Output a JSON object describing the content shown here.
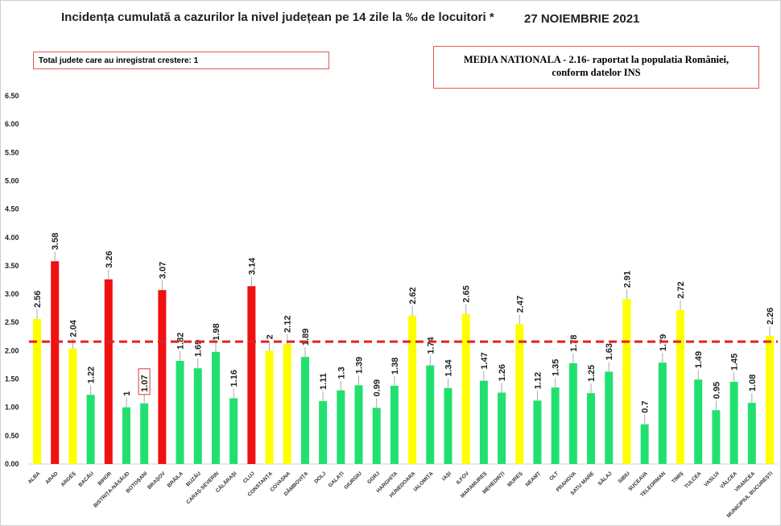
{
  "title": "Incidența cumulată a cazurilor la nivel județean pe 14 zile la ‰ de locuitori *",
  "date": "27 NOIEMBRIE 2021",
  "info_box": "Total judete care au inregistrat crestere: 1",
  "national_box_line1": "MEDIA NATIONALA - 2.16-  raportat la populatia României,",
  "national_box_line2": "conform datelor INS",
  "chart_data": {
    "type": "bar",
    "title": "Incidența cumulată a cazurilor la nivel județean pe 14 zile la ‰ de locuitori *",
    "ylim": [
      0,
      6.5
    ],
    "yticks": [
      "0.00",
      "0.50",
      "1.00",
      "1.50",
      "2.00",
      "2.50",
      "3.00",
      "3.50",
      "4.00",
      "4.50",
      "5.00",
      "5.50",
      "6.00",
      "6.50"
    ],
    "reference_line": {
      "value": 2.16,
      "color": "#e52020",
      "style": "dashed"
    },
    "colors": {
      "red": "#f01010",
      "yellow": "#ffff00",
      "green": "#22e070"
    },
    "highlighted_label": "BOTOȘANI",
    "categories": [
      "ALBA",
      "ARAD",
      "ARGEȘ",
      "BACĂU",
      "BIHOR",
      "BISTRIȚA-NĂSĂUD",
      "BOTOȘANI",
      "BRAȘOV",
      "BRĂILA",
      "BUZĂU",
      "CARAȘ-SEVERIN",
      "CĂLĂRAȘI",
      "CLUJ",
      "CONSTANȚA",
      "COVASNA",
      "DÂMBOVIȚA",
      "DOLJ",
      "GALAȚI",
      "GIURGIU",
      "GORJ",
      "HARGHITA",
      "HUNEDOARA",
      "IALOMIȚA",
      "IAȘI",
      "ILFOV",
      "MARAMUREȘ",
      "MEHEDINȚI",
      "MUREȘ",
      "NEAMȚ",
      "OLT",
      "PRAHOVA",
      "SATU MARE",
      "SĂLAJ",
      "SIBIU",
      "SUCEAVA",
      "TELEORMAN",
      "TIMIȘ",
      "TULCEA",
      "VASLUI",
      "VÂLCEA",
      "VRANCEA",
      "MUNICIPIUL BUCUREȘTI"
    ],
    "values": [
      2.56,
      3.58,
      2.04,
      1.22,
      3.26,
      1,
      1.07,
      3.07,
      1.82,
      1.69,
      1.98,
      1.16,
      3.14,
      2,
      2.12,
      1.89,
      1.11,
      1.3,
      1.39,
      0.99,
      1.38,
      2.62,
      1.74,
      1.34,
      2.65,
      1.47,
      1.26,
      2.47,
      1.12,
      1.35,
      1.78,
      1.25,
      1.63,
      2.91,
      0.7,
      1.79,
      2.72,
      1.49,
      0.95,
      1.45,
      1.08,
      2.26
    ],
    "bar_colors": [
      "yellow",
      "red",
      "yellow",
      "green",
      "red",
      "green",
      "green",
      "red",
      "green",
      "green",
      "green",
      "green",
      "red",
      "yellow",
      "yellow",
      "green",
      "green",
      "green",
      "green",
      "green",
      "green",
      "yellow",
      "green",
      "green",
      "yellow",
      "green",
      "green",
      "yellow",
      "green",
      "green",
      "green",
      "green",
      "green",
      "yellow",
      "green",
      "green",
      "yellow",
      "green",
      "green",
      "green",
      "green",
      "yellow"
    ]
  }
}
